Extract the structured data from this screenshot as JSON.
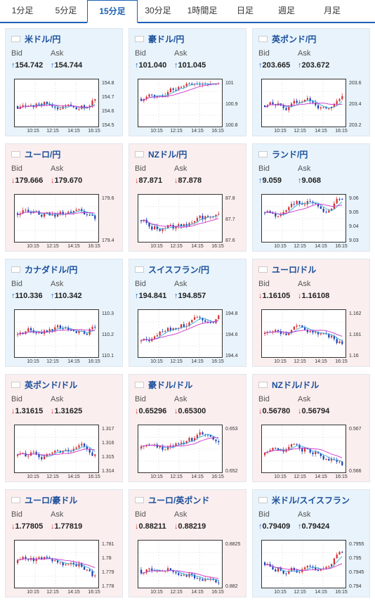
{
  "tabs": [
    {
      "label": "1分足",
      "active": false
    },
    {
      "label": "5分足",
      "active": false
    },
    {
      "label": "15分足",
      "active": true
    },
    {
      "label": "30分足",
      "active": false
    },
    {
      "label": "1時間足",
      "active": false
    },
    {
      "label": "日足",
      "active": false
    },
    {
      "label": "週足",
      "active": false
    },
    {
      "label": "月足",
      "active": false
    }
  ],
  "labels": {
    "bid": "Bid",
    "ask": "Ask"
  },
  "colors": {
    "up_candle": "#d32f2f",
    "down_candle": "#1a3fb4",
    "ma_short": "#33aadd",
    "ma_long": "#cc33cc"
  },
  "pairs": [
    {
      "name": "米ドル/円",
      "flag": "us-jp-flag",
      "theme": "blue",
      "dir": "up",
      "bid": "154.742",
      "ask": "154.744",
      "yticks": [
        "154.8",
        "154.7",
        "154.6",
        "154.5"
      ]
    },
    {
      "name": "豪ドル/円",
      "flag": "au-jp-flag",
      "theme": "blue",
      "dir": "up",
      "bid": "101.040",
      "ask": "101.045",
      "yticks": [
        "101",
        "100.9",
        "100.8"
      ]
    },
    {
      "name": "英ポンド/円",
      "flag": "gb-jp-flag",
      "theme": "blue",
      "dir": "up",
      "bid": "203.665",
      "ask": "203.672",
      "yticks": [
        "203.6",
        "203.4",
        "203.2"
      ]
    },
    {
      "name": "ユーロ/円",
      "flag": "eu-jp-flag",
      "theme": "pink",
      "dir": "down",
      "bid": "179.666",
      "ask": "179.670",
      "yticks": [
        "179.6",
        "179.4"
      ]
    },
    {
      "name": "NZドル/円",
      "flag": "nz-jp-flag",
      "theme": "pink",
      "dir": "down",
      "bid": "87.871",
      "ask": "87.878",
      "yticks": [
        "87.8",
        "87.7",
        "87.6"
      ]
    },
    {
      "name": "ランド/円",
      "flag": "za-jp-flag",
      "theme": "blue",
      "dir": "up",
      "bid": "9.059",
      "ask": "9.068",
      "yticks": [
        "9.06",
        "9.05",
        "9.04",
        "9.03"
      ]
    },
    {
      "name": "カナダドル/円",
      "flag": "ca-jp-flag",
      "theme": "blue",
      "dir": "up",
      "bid": "110.336",
      "ask": "110.342",
      "yticks": [
        "110.3",
        "110.2",
        "110.1"
      ]
    },
    {
      "name": "スイスフラン/円",
      "flag": "ch-jp-flag",
      "theme": "blue",
      "dir": "up",
      "bid": "194.841",
      "ask": "194.857",
      "yticks": [
        "194.8",
        "194.6",
        "194.4"
      ]
    },
    {
      "name": "ユーロ/ドル",
      "flag": "eu-us-flag",
      "theme": "pink",
      "dir": "down",
      "bid": "1.16105",
      "ask": "1.16108",
      "yticks": [
        "1.162",
        "1.161",
        "1.16"
      ]
    },
    {
      "name": "英ポンド/ドル",
      "flag": "gb-us-flag",
      "theme": "pink",
      "dir": "down",
      "bid": "1.31615",
      "ask": "1.31625",
      "yticks": [
        "1.317",
        "1.316",
        "1.315",
        "1.314"
      ]
    },
    {
      "name": "豪ドル/ドル",
      "flag": "au-us-flag",
      "theme": "pink",
      "dir": "down",
      "bid": "0.65296",
      "ask": "0.65300",
      "yticks": [
        "0.653",
        "0.652"
      ]
    },
    {
      "name": "NZドル/ドル",
      "flag": "nz-us-flag",
      "theme": "pink",
      "dir": "down",
      "bid": "0.56780",
      "ask": "0.56794",
      "yticks": [
        "0.567",
        "0.566"
      ]
    },
    {
      "name": "ユーロ/豪ドル",
      "flag": "eu-au-flag",
      "theme": "pink",
      "dir": "down",
      "bid": "1.77805",
      "ask": "1.77819",
      "yticks": [
        "1.781",
        "1.78",
        "1.779",
        "1.778"
      ]
    },
    {
      "name": "ユーロ/英ポンド",
      "flag": "eu-gb-flag",
      "theme": "pink",
      "dir": "down",
      "bid": "0.88211",
      "ask": "0.88219",
      "yticks": [
        "0.8825",
        "0.882"
      ]
    },
    {
      "name": "米ドル/スイスフラン",
      "flag": "us-ch-flag",
      "theme": "blue",
      "dir": "up",
      "bid": "0.79409",
      "ask": "0.79424",
      "yticks": [
        "0.7955",
        "0.795",
        "0.7945",
        "0.794"
      ]
    }
  ],
  "xticks": [
    "10:15",
    "12:15",
    "14:15",
    "16:15"
  ]
}
